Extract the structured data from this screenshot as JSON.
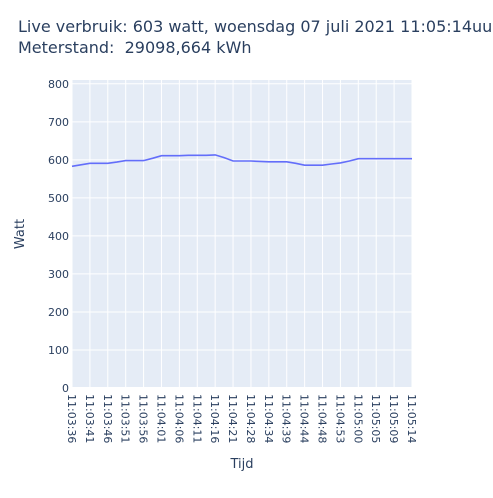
{
  "chart_data": {
    "type": "line",
    "title": "Live verbruik: 603 watt, woensdag 07 juli 2021 11:05:14uur",
    "subtitle": "Meterstand:  29098,664 kWh",
    "xlabel": "Tijd",
    "ylabel": "Watt",
    "ylim": [
      0,
      810
    ],
    "yticks": [
      0,
      100,
      200,
      300,
      400,
      500,
      600,
      700,
      800
    ],
    "grid": true,
    "colors": {
      "line": "#636efa",
      "plot_bg": "#e5ecf6",
      "grid": "#ffffff",
      "text": "#2a3f5f"
    },
    "x": [
      "11:03:36",
      "11:03:38",
      "11:03:41",
      "11:03:43",
      "11:03:46",
      "11:03:48",
      "11:03:51",
      "11:03:53",
      "11:03:56",
      "11:03:58",
      "11:04:01",
      "11:04:03",
      "11:04:06",
      "11:04:08",
      "11:04:11",
      "11:04:13",
      "11:04:16",
      "11:04:18",
      "11:04:21",
      "11:04:23",
      "11:04:28",
      "11:04:31",
      "11:04:34",
      "11:04:36",
      "11:04:39",
      "11:04:41",
      "11:04:44",
      "11:04:46",
      "11:04:48",
      "11:04:51",
      "11:04:53",
      "11:04:56",
      "11:05:00",
      "11:05:02",
      "11:05:05",
      "11:05:07",
      "11:05:09",
      "11:05:12",
      "11:05:14"
    ],
    "values": [
      583,
      587,
      591,
      591,
      591,
      594,
      598,
      598,
      598,
      604,
      611,
      611,
      611,
      612,
      612,
      612,
      613,
      606,
      597,
      597,
      597,
      596,
      595,
      595,
      595,
      591,
      586,
      586,
      586,
      589,
      592,
      597,
      603,
      603,
      603,
      603,
      603,
      603,
      603
    ],
    "xtick_labels": [
      "11:03:36",
      "11:03:41",
      "11:03:46",
      "11:03:51",
      "11:03:56",
      "11:04:01",
      "11:04:06",
      "11:04:11",
      "11:04:16",
      "11:04:21",
      "11:04:28",
      "11:04:34",
      "11:04:39",
      "11:04:44",
      "11:04:48",
      "11:04:53",
      "11:05:00",
      "11:05:05",
      "11:05:09",
      "11:05:14"
    ]
  }
}
